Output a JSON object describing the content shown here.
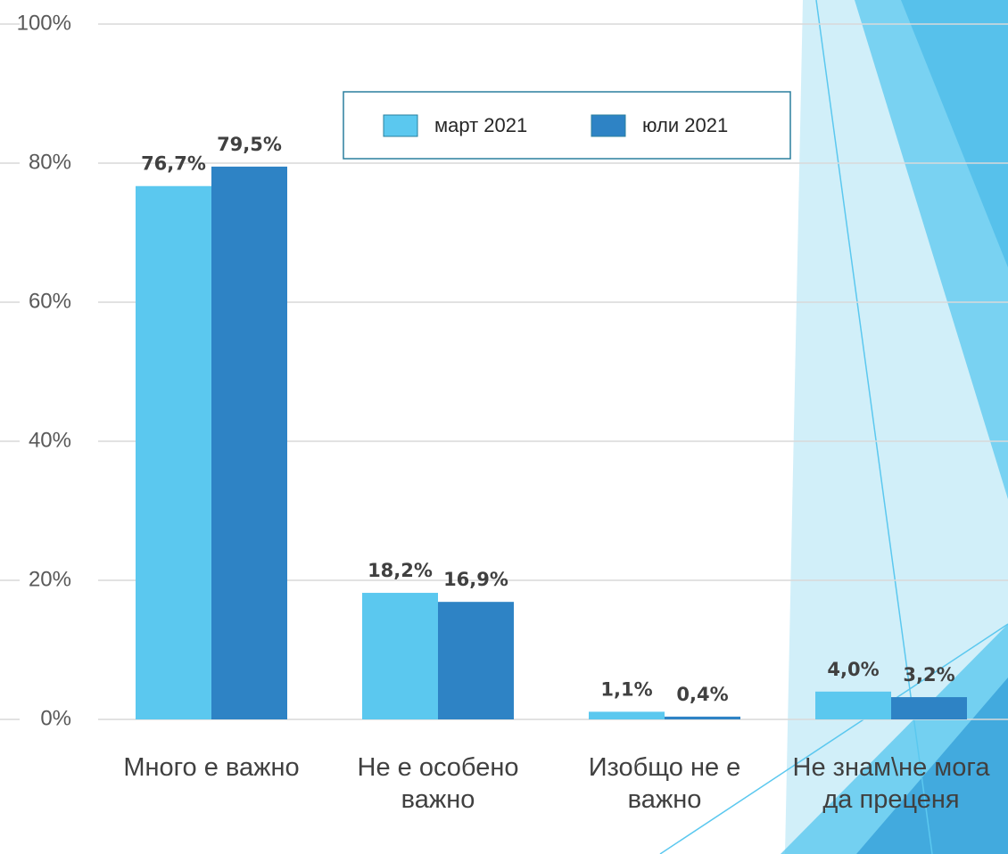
{
  "chart_data": {
    "type": "bar",
    "categories": [
      "Много е важно",
      "Не е особено важно",
      "Изобщо не е важно",
      "Не знам\\не мога да преценя"
    ],
    "series": [
      {
        "name": "март 2021",
        "color": "#5bc8ef",
        "values": [
          76.7,
          18.2,
          1.1,
          4.0
        ],
        "value_labels": [
          "76,7%",
          "18,2%",
          "1,1%",
          "4,0%"
        ]
      },
      {
        "name": "юли 2021",
        "color": "#2e83c5",
        "values": [
          79.5,
          16.9,
          0.4,
          3.2
        ],
        "value_labels": [
          "79,5%",
          "16,9%",
          "0,4%",
          "3,2%"
        ]
      }
    ],
    "ylim": [
      0,
      100
    ],
    "yticks": [
      {
        "value": 0,
        "label": "0%"
      },
      {
        "value": 20,
        "label": "20%"
      },
      {
        "value": 40,
        "label": "40%"
      },
      {
        "value": 60,
        "label": "60%"
      },
      {
        "value": 80,
        "label": "80%"
      },
      {
        "value": 100,
        "label": "100%"
      }
    ],
    "grid": true
  }
}
